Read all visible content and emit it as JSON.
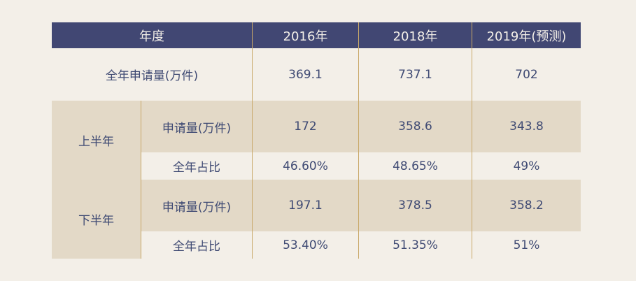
{
  "header": {
    "year_label": "年度",
    "y2016": "2016年",
    "y2018": "2018年",
    "y2019": "2019年(预测)"
  },
  "total_row": {
    "label": "全年申请量(万件)",
    "v2016": "369.1",
    "v2018": "737.1",
    "v2019": "702"
  },
  "first_half": {
    "label": "上半年",
    "apps_label": "申请量(万件)",
    "apps": [
      "172",
      "358.6",
      "343.8"
    ],
    "share_label": "全年占比",
    "share": [
      "46.60%",
      "48.65%",
      "49%"
    ]
  },
  "second_half": {
    "label": "下半年",
    "apps_label": "申请量(万件)",
    "apps": [
      "197.1",
      "378.5",
      "358.2"
    ],
    "share_label": "全年占比",
    "share": [
      "53.40%",
      "51.35%",
      "51%"
    ]
  },
  "colors": {
    "header_bg": "#414773",
    "band_bg": "#e3d9c7",
    "page_bg": "#f3efe8",
    "divider": "#c9a96a",
    "text": "#3f4a73"
  }
}
